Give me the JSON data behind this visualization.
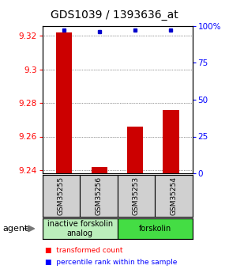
{
  "title": "GDS1039 / 1393636_at",
  "samples": [
    "GSM35255",
    "GSM35256",
    "GSM35253",
    "GSM35254"
  ],
  "red_values": [
    9.322,
    9.242,
    9.266,
    9.276
  ],
  "blue_values": [
    97,
    96,
    97,
    97
  ],
  "ylim_left": [
    9.238,
    9.326
  ],
  "ylim_right": [
    0,
    100
  ],
  "yticks_left": [
    9.24,
    9.26,
    9.28,
    9.3,
    9.32
  ],
  "yticks_right": [
    0,
    25,
    50,
    75,
    100
  ],
  "ytick_labels_right": [
    "0",
    "25",
    "50",
    "75",
    "100%"
  ],
  "groups": [
    {
      "label": "inactive forskolin\nanalog",
      "color": "#bbeebb",
      "span": [
        0,
        2
      ]
    },
    {
      "label": "forskolin",
      "color": "#44dd44",
      "span": [
        2,
        4
      ]
    }
  ],
  "bar_color": "#cc0000",
  "dot_color": "#0000cc",
  "bar_width": 0.45,
  "grid_color": "#333333",
  "bg_color": "#ffffff",
  "sample_box_color": "#d0d0d0",
  "agent_label": "agent",
  "legend_red": "transformed count",
  "legend_blue": "percentile rank within the sample",
  "title_fontsize": 10,
  "axis_fontsize": 7.5,
  "sample_fontsize": 6.5,
  "group_fontsize": 7,
  "legend_fontsize": 6.5
}
